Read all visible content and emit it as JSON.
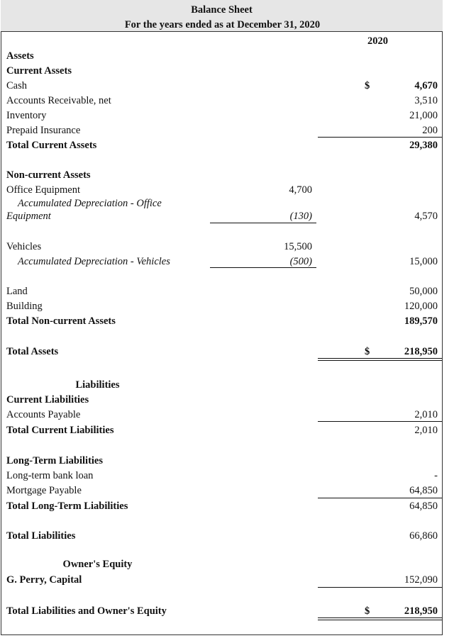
{
  "header": {
    "title": "Balance Sheet",
    "subtitle": "For the years ended as at December 31, 2020",
    "year": "2020",
    "background": "#e6e6e6"
  },
  "rows": [
    {
      "label": "Assets",
      "bold": true
    },
    {
      "label": "Current Assets",
      "bold": true
    },
    {
      "label": "Cash",
      "dollar": "$",
      "value": "4,670",
      "value_bold": true
    },
    {
      "label": "Accounts Receivable, net",
      "value": "3,510"
    },
    {
      "label": "Inventory",
      "value": "21,000"
    },
    {
      "label": "Prepaid Insurance",
      "value": "200"
    },
    {
      "label": "Total Current Assets",
      "bold": true,
      "value": "29,380",
      "value_bold": true
    },
    {
      "label": "Non-current Assets",
      "bold": true
    },
    {
      "label": "Office Equipment",
      "mid": "4,700"
    },
    {
      "label": "Accumulated Depreciation - Office",
      "italic": true,
      "indent": true
    },
    {
      "label": "Equipment",
      "italic": true,
      "mid": "(130)",
      "value": "4,570"
    },
    {
      "label": "Vehicles",
      "mid": "15,500"
    },
    {
      "label": "Accumulated Depreciation - Vehicles",
      "italic": true,
      "indent": true,
      "mid": "(500)",
      "value": "15,000"
    },
    {
      "label": "Land",
      "value": "50,000"
    },
    {
      "label": "Building",
      "value": "120,000"
    },
    {
      "label": "Total Non-current Assets",
      "bold": true,
      "value": "189,570",
      "value_bold": true
    },
    {
      "label": "Total Assets",
      "bold": true,
      "dollar": "$",
      "value": "218,950",
      "value_bold": true
    },
    {
      "label": "Liabilities",
      "bold": true,
      "center": true
    },
    {
      "label": "Current Liabilities",
      "bold": true
    },
    {
      "label": "Accounts Payable",
      "value": "2,010"
    },
    {
      "label": "Total Current Liabilities",
      "bold": true,
      "value": "2,010"
    },
    {
      "label": "Long-Term Liabilities",
      "bold": true
    },
    {
      "label": "Long-term bank loan",
      "value": "-"
    },
    {
      "label": "Mortgage Payable",
      "value": "64,850"
    },
    {
      "label": "Total Long-Term Liabilities",
      "bold": true,
      "value": "64,850"
    },
    {
      "label": "Total Liabilities",
      "bold": true,
      "value": "66,860"
    },
    {
      "label": "Owner's Equity",
      "bold": true,
      "center": true
    },
    {
      "label": "G. Perry, Capital",
      "bold": true,
      "value": "152,090"
    },
    {
      "label": "Total Liabilities and Owner's Equity",
      "bold": true,
      "dollar": "$",
      "value": "218,950",
      "value_bold": true
    }
  ]
}
